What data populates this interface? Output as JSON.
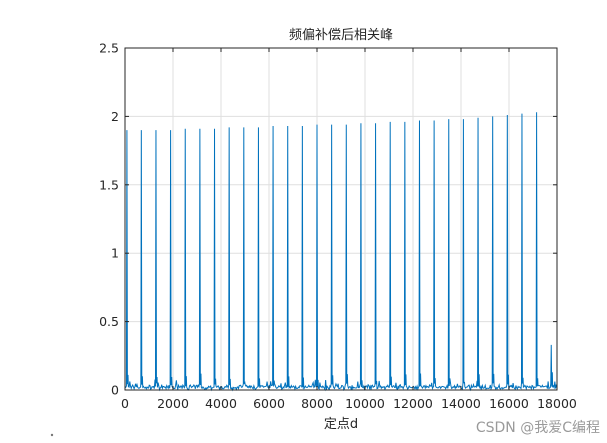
{
  "chart_data": {
    "type": "line",
    "title": "频偏补偿后相关峰",
    "xlabel": "定点d",
    "ylabel": "",
    "xlim": [
      0,
      18000
    ],
    "ylim": [
      0,
      2.5
    ],
    "xticks": [
      0,
      2000,
      4000,
      6000,
      8000,
      10000,
      12000,
      14000,
      16000,
      18000
    ],
    "xtick_labels": [
      "0",
      "2000",
      "4000",
      "6000",
      "8000",
      "10000",
      "12000",
      "14000",
      "16000",
      "18000"
    ],
    "yticks": [
      0,
      0.5,
      1,
      1.5,
      2,
      2.5
    ],
    "ytick_labels": [
      "0",
      "0.5",
      "1",
      "1.5",
      "2",
      "2.5"
    ],
    "grid": true,
    "line_color": "#0072BD",
    "baseline_level": 0.02,
    "series": [
      {
        "peak_x": [
          80,
          680,
          1290,
          1900,
          2510,
          3120,
          3730,
          4340,
          4950,
          5560,
          6170,
          6780,
          7390,
          8000,
          8610,
          9220,
          9830,
          10440,
          11050,
          11660,
          12270,
          12880,
          13490,
          14100,
          14710,
          15320,
          15930,
          16540,
          17150,
          17760
        ],
        "peak_y": [
          1.9,
          1.9,
          1.9,
          1.9,
          1.91,
          1.91,
          1.91,
          1.92,
          1.92,
          1.92,
          1.93,
          1.93,
          1.93,
          1.94,
          1.94,
          1.94,
          1.95,
          1.95,
          1.96,
          1.96,
          1.97,
          1.97,
          1.98,
          1.98,
          1.99,
          2.0,
          2.01,
          2.02,
          2.03,
          0.33
        ]
      }
    ]
  },
  "watermark": "CSDN @我爱C编程"
}
